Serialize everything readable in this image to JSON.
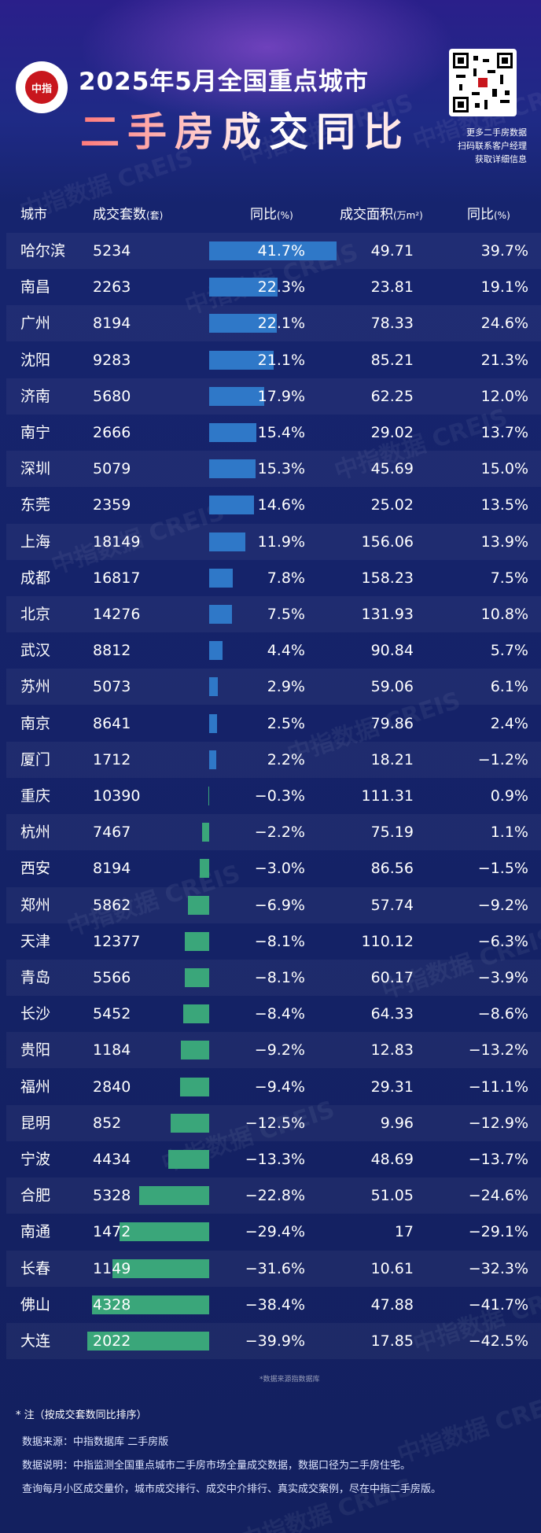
{
  "title_line1": "2025年5月全国重点城市",
  "title_line2": "二手房成交同比",
  "logo_text": "中指",
  "qr_caption": [
    "更多二手房数据",
    "扫码联系客户经理",
    "获取详细信息"
  ],
  "watermark": "中指数据 CREIS",
  "colors": {
    "positive_bar": "#2f78c8",
    "negative_bar": "#3aa67a",
    "background": "#13205f"
  },
  "chart_data": {
    "type": "table",
    "headers": {
      "city": "城市",
      "count": "成交套数",
      "count_unit": "(套)",
      "count_yoy": "同比",
      "count_yoy_unit": "(%)",
      "area": "成交面积",
      "area_unit": "(万m²)",
      "area_yoy": "同比",
      "area_yoy_unit": "(%)"
    },
    "rows": [
      {
        "city": "哈尔滨",
        "count": "5234",
        "count_yoy": "41.7%",
        "count_yoy_value": 41.7,
        "area": "49.71",
        "area_yoy": "39.7%"
      },
      {
        "city": "南昌",
        "count": "2263",
        "count_yoy": "22.3%",
        "count_yoy_value": 22.3,
        "area": "23.81",
        "area_yoy": "19.1%"
      },
      {
        "city": "广州",
        "count": "8194",
        "count_yoy": "22.1%",
        "count_yoy_value": 22.1,
        "area": "78.33",
        "area_yoy": "24.6%"
      },
      {
        "city": "沈阳",
        "count": "9283",
        "count_yoy": "21.1%",
        "count_yoy_value": 21.1,
        "area": "85.21",
        "area_yoy": "21.3%"
      },
      {
        "city": "济南",
        "count": "5680",
        "count_yoy": "17.9%",
        "count_yoy_value": 17.9,
        "area": "62.25",
        "area_yoy": "12.0%"
      },
      {
        "city": "南宁",
        "count": "2666",
        "count_yoy": "15.4%",
        "count_yoy_value": 15.4,
        "area": "29.02",
        "area_yoy": "13.7%"
      },
      {
        "city": "深圳",
        "count": "5079",
        "count_yoy": "15.3%",
        "count_yoy_value": 15.3,
        "area": "45.69",
        "area_yoy": "15.0%"
      },
      {
        "city": "东莞",
        "count": "2359",
        "count_yoy": "14.6%",
        "count_yoy_value": 14.6,
        "area": "25.02",
        "area_yoy": "13.5%"
      },
      {
        "city": "上海",
        "count": "18149",
        "count_yoy": "11.9%",
        "count_yoy_value": 11.9,
        "area": "156.06",
        "area_yoy": "13.9%"
      },
      {
        "city": "成都",
        "count": "16817",
        "count_yoy": "7.8%",
        "count_yoy_value": 7.8,
        "area": "158.23",
        "area_yoy": "7.5%"
      },
      {
        "city": "北京",
        "count": "14276",
        "count_yoy": "7.5%",
        "count_yoy_value": 7.5,
        "area": "131.93",
        "area_yoy": "10.8%"
      },
      {
        "city": "武汉",
        "count": "8812",
        "count_yoy": "4.4%",
        "count_yoy_value": 4.4,
        "area": "90.84",
        "area_yoy": "5.7%"
      },
      {
        "city": "苏州",
        "count": "5073",
        "count_yoy": "2.9%",
        "count_yoy_value": 2.9,
        "area": "59.06",
        "area_yoy": "6.1%"
      },
      {
        "city": "南京",
        "count": "8641",
        "count_yoy": "2.5%",
        "count_yoy_value": 2.5,
        "area": "79.86",
        "area_yoy": "2.4%"
      },
      {
        "city": "厦门",
        "count": "1712",
        "count_yoy": "2.2%",
        "count_yoy_value": 2.2,
        "area": "18.21",
        "area_yoy": "−1.2%"
      },
      {
        "city": "重庆",
        "count": "10390",
        "count_yoy": "−0.3%",
        "count_yoy_value": -0.3,
        "area": "111.31",
        "area_yoy": "0.9%"
      },
      {
        "city": "杭州",
        "count": "7467",
        "count_yoy": "−2.2%",
        "count_yoy_value": -2.2,
        "area": "75.19",
        "area_yoy": "1.1%"
      },
      {
        "city": "西安",
        "count": "8194",
        "count_yoy": "−3.0%",
        "count_yoy_value": -3.0,
        "area": "86.56",
        "area_yoy": "−1.5%"
      },
      {
        "city": "郑州",
        "count": "5862",
        "count_yoy": "−6.9%",
        "count_yoy_value": -6.9,
        "area": "57.74",
        "area_yoy": "−9.2%"
      },
      {
        "city": "天津",
        "count": "12377",
        "count_yoy": "−8.1%",
        "count_yoy_value": -8.1,
        "area": "110.12",
        "area_yoy": "−6.3%"
      },
      {
        "city": "青岛",
        "count": "5566",
        "count_yoy": "−8.1%",
        "count_yoy_value": -8.1,
        "area": "60.17",
        "area_yoy": "−3.9%"
      },
      {
        "city": "长沙",
        "count": "5452",
        "count_yoy": "−8.4%",
        "count_yoy_value": -8.4,
        "area": "64.33",
        "area_yoy": "−8.6%"
      },
      {
        "city": "贵阳",
        "count": "1184",
        "count_yoy": "−9.2%",
        "count_yoy_value": -9.2,
        "area": "12.83",
        "area_yoy": "−13.2%"
      },
      {
        "city": "福州",
        "count": "2840",
        "count_yoy": "−9.4%",
        "count_yoy_value": -9.4,
        "area": "29.31",
        "area_yoy": "−11.1%"
      },
      {
        "city": "昆明",
        "count": "852",
        "count_yoy": "−12.5%",
        "count_yoy_value": -12.5,
        "area": "9.96",
        "area_yoy": "−12.9%"
      },
      {
        "city": "宁波",
        "count": "4434",
        "count_yoy": "−13.3%",
        "count_yoy_value": -13.3,
        "area": "48.69",
        "area_yoy": "−13.7%"
      },
      {
        "city": "合肥",
        "count": "5328",
        "count_yoy": "−22.8%",
        "count_yoy_value": -22.8,
        "area": "51.05",
        "area_yoy": "−24.6%"
      },
      {
        "city": "南通",
        "count": "1472",
        "count_yoy": "−29.4%",
        "count_yoy_value": -29.4,
        "area": "17",
        "area_yoy": "−29.1%"
      },
      {
        "city": "长春",
        "count": "1149",
        "count_yoy": "−31.6%",
        "count_yoy_value": -31.6,
        "area": "10.61",
        "area_yoy": "−32.3%"
      },
      {
        "city": "佛山",
        "count": "4328",
        "count_yoy": "−38.4%",
        "count_yoy_value": -38.4,
        "area": "47.88",
        "area_yoy": "−41.7%"
      },
      {
        "city": "大连",
        "count": "2022",
        "count_yoy": "−39.9%",
        "count_yoy_value": -39.9,
        "area": "17.85",
        "area_yoy": "−42.5%"
      }
    ]
  },
  "footer": {
    "small_note": "*数据来源指数据库",
    "note": "* 注（按成交套数同比排序）",
    "source": "数据来源：中指数据库 二手房版",
    "explanation": "数据说明：中指监测全国重点城市二手房市场全量成交数据，数据口径为二手房住宅。",
    "promo": "查询每月小区成交量价，城市成交排行、成交中介排行、真实成交案例，尽在中指二手房版。"
  }
}
